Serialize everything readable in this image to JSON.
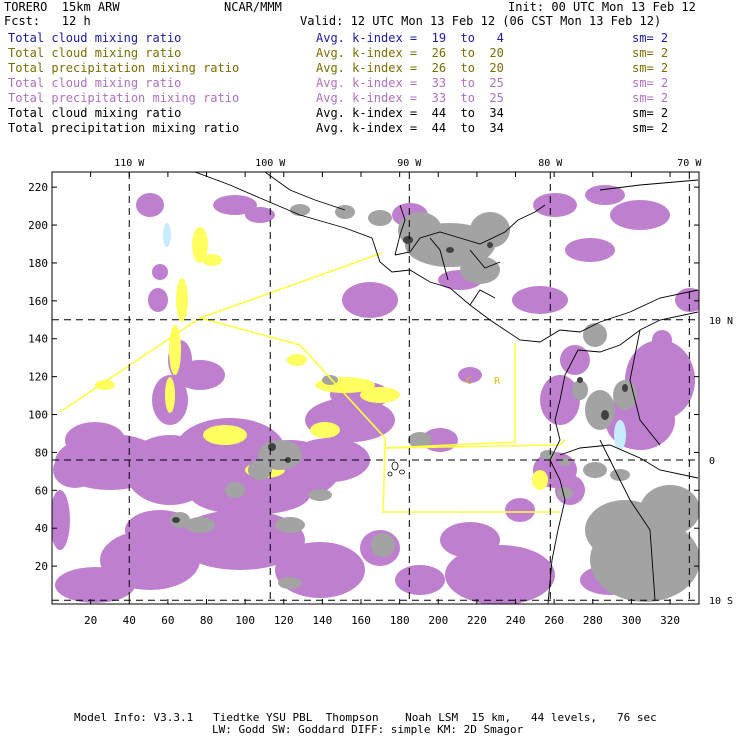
{
  "header": {
    "model": "TORERO  15km ARW",
    "org": "NCAR/MMM",
    "init": "Init: 00 UTC Mon 13 Feb 12",
    "fcst": "Fcst:   12 h",
    "valid": "Valid: 12 UTC Mon 13 Feb 12 (06 CST Mon 13 Feb 12)"
  },
  "legend": [
    {
      "field": "Total cloud mixing ratio",
      "kindex": "Avg. k-index =  19  to   4",
      "sm": "sm= 2",
      "color": "#1a1aa8"
    },
    {
      "field": "Total cloud mixing ratio",
      "kindex": "Avg. k-index =  26  to  20",
      "sm": "sm= 2",
      "color": "#7a6e00"
    },
    {
      "field": "Total precipitation mixing ratio",
      "kindex": "Avg. k-index =  26  to  20",
      "sm": "sm= 2",
      "color": "#7a6e00"
    },
    {
      "field": "Total cloud mixing ratio",
      "kindex": "Avg. k-index =  33  to  25",
      "sm": "sm= 2",
      "color": "#b070c0"
    },
    {
      "field": "Total precipitation mixing ratio",
      "kindex": "Avg. k-index =  33  to  25",
      "sm": "sm= 2",
      "color": "#b070c0"
    },
    {
      "field": "Total cloud mixing ratio",
      "kindex": "Avg. k-index =  44  to  34",
      "sm": "sm= 2",
      "color": "#000000"
    },
    {
      "field": "Total precipitation mixing ratio",
      "kindex": "Avg. k-index =  44  to  34",
      "sm": "sm= 2",
      "color": "#000000"
    }
  ],
  "chart_data": {
    "type": "map",
    "x_ticks": [
      20,
      40,
      60,
      80,
      100,
      120,
      140,
      160,
      180,
      200,
      220,
      240,
      260,
      280,
      300,
      320
    ],
    "y_ticks": [
      20,
      40,
      60,
      80,
      100,
      120,
      140,
      160,
      180,
      200,
      220
    ],
    "xlim": [
      0,
      335
    ],
    "ylim": [
      0,
      228
    ],
    "lon_labels": [
      "110 W",
      "100 W",
      "90 W",
      "80 W",
      "70 W"
    ],
    "lon_grid_x": [
      40,
      113,
      185,
      258,
      330
    ],
    "lat_labels": [
      "10 N",
      "0",
      "10 S"
    ],
    "lat_grid_y": [
      150,
      76,
      2
    ],
    "legend_marks": [
      "C",
      "R"
    ],
    "colors": {
      "lavender": "#bf7fcf",
      "yellow": "#ffff60",
      "gray": "#a3a3a3",
      "dark": "#404040",
      "cyan": "#c8ecff",
      "frame": "#000000"
    }
  },
  "footer": {
    "line1": "Model Info: V3.3.1   Tiedtke YSU PBL  Thompson    Noah LSM  15 km,   44 levels,   76 sec",
    "line2": "LW: Godd SW: Goddard DIFF: simple KM: 2D Smagor"
  }
}
